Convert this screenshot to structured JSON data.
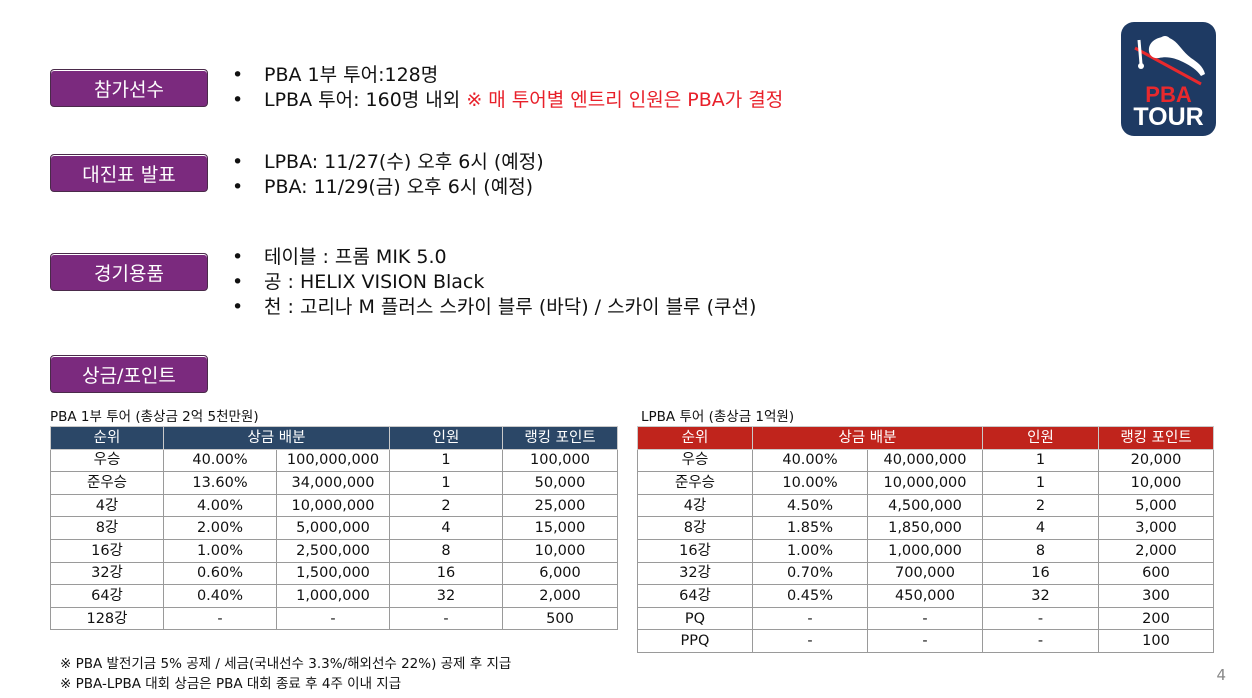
{
  "sections": {
    "participants": {
      "label": "참가선수",
      "items": [
        {
          "text": "PBA 1부 투어:128명",
          "note": ""
        },
        {
          "text": "LPBA 투어: 160명 내외 ",
          "note": "※ 매 투어별 엔트리 인원은 PBA가 결정"
        }
      ]
    },
    "bracket": {
      "label": "대진표 발표",
      "items": [
        "LPBA: 11/27(수) 오후 6시 (예정)",
        "PBA: 11/29(금) 오후 6시 (예정)"
      ]
    },
    "equipment": {
      "label": "경기용품",
      "items": [
        "테이블 : 프롬 MIK 5.0",
        "공 : HELIX VISION Black",
        "천 : 고리나 M 플러스 스카이 블루 (바닥) / 스카이 블루 (쿠션)"
      ]
    },
    "prize": {
      "label": "상금/포인트"
    }
  },
  "pba_table": {
    "caption": "PBA 1부 투어 (총상금 2억 5천만원)",
    "headers": [
      "순위",
      "상금 배분",
      "인원",
      "랭킹 포인트"
    ],
    "rows": [
      [
        "우승",
        "40.00%",
        "100,000,000",
        "1",
        "100,000"
      ],
      [
        "준우승",
        "13.60%",
        "34,000,000",
        "1",
        "50,000"
      ],
      [
        "4강",
        "4.00%",
        "10,000,000",
        "2",
        "25,000"
      ],
      [
        "8강",
        "2.00%",
        "5,000,000",
        "4",
        "15,000"
      ],
      [
        "16강",
        "1.00%",
        "2,500,000",
        "8",
        "10,000"
      ],
      [
        "32강",
        "0.60%",
        "1,500,000",
        "16",
        "6,000"
      ],
      [
        "64강",
        "0.40%",
        "1,000,000",
        "32",
        "2,000"
      ],
      [
        "128강",
        "-",
        "-",
        "-",
        "500"
      ]
    ]
  },
  "lpba_table": {
    "caption": "LPBA 투어 (총상금 1억원)",
    "headers": [
      "순위",
      "상금 배분",
      "인원",
      "랭킹 포인트"
    ],
    "rows": [
      [
        "우승",
        "40.00%",
        "40,000,000",
        "1",
        "20,000"
      ],
      [
        "준우승",
        "10.00%",
        "10,000,000",
        "1",
        "10,000"
      ],
      [
        "4강",
        "4.50%",
        "4,500,000",
        "2",
        "5,000"
      ],
      [
        "8강",
        "1.85%",
        "1,850,000",
        "4",
        "3,000"
      ],
      [
        "16강",
        "1.00%",
        "1,000,000",
        "8",
        "2,000"
      ],
      [
        "32강",
        "0.70%",
        "700,000",
        "16",
        "600"
      ],
      [
        "64강",
        "0.45%",
        "450,000",
        "32",
        "300"
      ],
      [
        "PQ",
        "-",
        "-",
        "-",
        "200"
      ],
      [
        "PPQ",
        "-",
        "-",
        "-",
        "100"
      ]
    ]
  },
  "notes": [
    "※ PBA 발전기금 5% 공제 / 세금(국내선수 3.3%/해외선수 22%) 공제 후 지급",
    "※ PBA-LPBA 대회 상금은 PBA 대회 종료 후 4주 이내 지급"
  ],
  "logo": {
    "line1": "PBA",
    "line2": "TOUR"
  },
  "page_number": "4",
  "colors": {
    "tag": "#7b2a7e",
    "pba_header": "#2b4767",
    "lpba_header": "#c0241c",
    "accent_red": "#e8202a",
    "logo_bg": "#1e3a63"
  }
}
